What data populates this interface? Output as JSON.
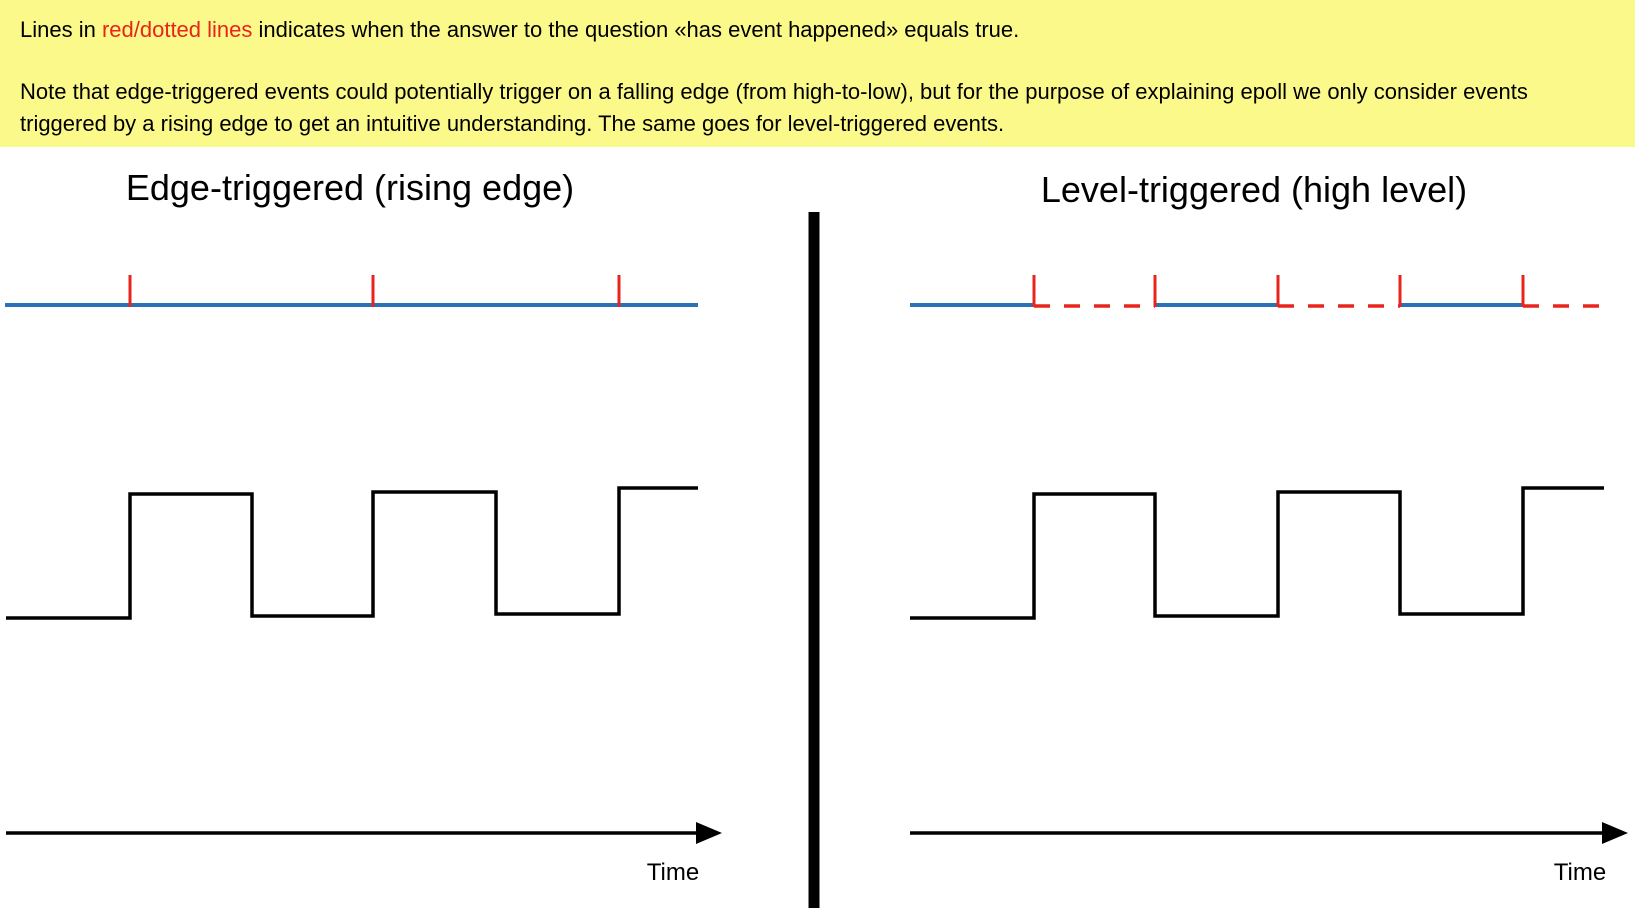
{
  "note": {
    "line1_prefix": "Lines in ",
    "line1_highlight": "red/dotted lines",
    "line1_suffix": " indicates when the answer to the question «has event happened» equals true.",
    "paragraph2": "Note that edge-triggered events could potentially trigger on a falling edge (from high-to-low), but for the purpose of explaining epoll we only consider events triggered by a rising edge to get an intuitive understanding. The same goes for level-triggered events.",
    "background_color": "#fcf98b",
    "highlight_color": "#e8241c"
  },
  "panels": {
    "edge": {
      "title": "Edge-triggered (rising edge)",
      "time_label": "Time"
    },
    "level": {
      "title": "Level-triggered (high level)",
      "time_label": "Time"
    }
  },
  "colors": {
    "event_line": "#2a72b8",
    "event_true": "#e8241c",
    "signal": "#000000",
    "divider": "#000000"
  },
  "signal": {
    "levels": [
      "low",
      "high",
      "low",
      "high",
      "low",
      "high"
    ],
    "rising_edges": 3
  }
}
